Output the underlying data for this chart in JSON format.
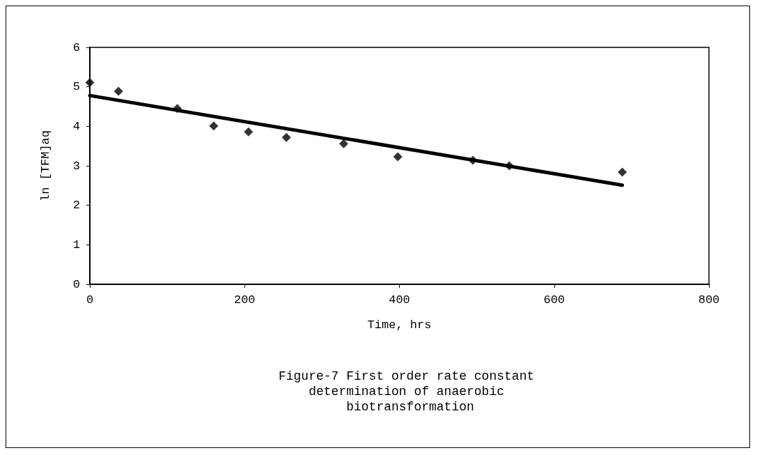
{
  "chart_data": {
    "type": "scatter",
    "title": "Figure-7 First order rate constant determination of anaerobic biotransformation",
    "xlabel": "Time, hrs",
    "ylabel": "ln [TFM]aq",
    "xlim": [
      0,
      800
    ],
    "xticks": [
      0,
      200,
      400,
      600,
      800
    ],
    "ylim": [
      0,
      6
    ],
    "yticks": [
      0,
      1,
      2,
      3,
      4,
      5,
      6
    ],
    "grid": false,
    "marker": "diamond",
    "series": [
      {
        "color": "#000000",
        "x": [
          0,
          37,
          113,
          160,
          205,
          254,
          328,
          398,
          495,
          542,
          688
        ],
        "values": [
          5.11,
          4.89,
          4.45,
          4.01,
          3.86,
          3.72,
          3.56,
          3.23,
          3.14,
          3.0,
          2.84
        ]
      },
      {
        "type": "line",
        "color": "#000000",
        "marker": "none",
        "line_style": "solid",
        "x": [
          0,
          688
        ],
        "values": [
          4.78,
          2.51
        ]
      }
    ]
  }
}
